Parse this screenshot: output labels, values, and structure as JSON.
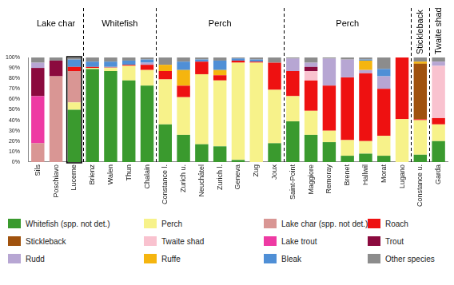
{
  "chart_data": {
    "type": "bar",
    "stacked": true,
    "grid": false,
    "legend": "bottom",
    "categories": [
      "Sils",
      "Poschiavo",
      "Lucerne",
      "Brienz",
      "Walen",
      "Thun",
      "Chalain",
      "Constance l.",
      "Zurich u.",
      "Neuchâtel",
      "Zurich l.",
      "Geneva",
      "Zug",
      "Joux",
      "Saint-Point",
      "Maggiore",
      "Remoray",
      "Brenet",
      "Hallwil",
      "Morat",
      "Lugano",
      "Constance u.",
      "Garda"
    ],
    "groups": [
      {
        "label": "Lake char",
        "from": "Sils",
        "to": "Lucerne"
      },
      {
        "label": "Whitefish",
        "from": "Brienz",
        "to": "Chalain"
      },
      {
        "label": "Perch",
        "from": "Constance l.",
        "to": "Joux"
      },
      {
        "label": "Perch",
        "from": "Saint-Point",
        "to": "Lugano"
      },
      {
        "label": "Stickleback",
        "from": "Constance u.",
        "to": "Constance u."
      },
      {
        "label": "Twaite shad",
        "from": "Garda",
        "to": "Garda"
      }
    ],
    "highlight": "Lucerne",
    "ylim": [
      0,
      100
    ],
    "yticks": [
      {
        "value": 0,
        "label": "0%"
      },
      {
        "value": 10,
        "label": "10%"
      },
      {
        "value": 20,
        "label": "20%"
      },
      {
        "value": 30,
        "label": "30%"
      },
      {
        "value": 40,
        "label": "40%"
      },
      {
        "value": 50,
        "label": "50%"
      },
      {
        "value": 60,
        "label": "60%"
      },
      {
        "value": 70,
        "label": "70%"
      },
      {
        "value": 80,
        "label": "80%"
      },
      {
        "value": 90,
        "label": "90%"
      },
      {
        "value": 100,
        "label": "100%"
      }
    ],
    "series": [
      {
        "name": "Whitefish (spp. not det.)",
        "color": "#3a9a2e",
        "values": [
          0,
          0,
          50,
          89,
          87,
          78,
          73,
          36,
          26,
          17,
          15,
          2,
          0,
          18,
          39,
          26,
          19,
          6,
          8,
          6,
          0,
          7,
          20
        ]
      },
      {
        "name": "Perch",
        "color": "#f7f28a",
        "values": [
          0,
          0,
          7,
          1,
          3,
          14,
          15,
          43,
          36,
          67,
          63,
          93,
          95,
          51,
          24,
          23,
          11,
          15,
          12,
          19,
          41,
          33,
          16
        ]
      },
      {
        "name": "Lake char (spp. not det.)",
        "color": "#d99694",
        "values": [
          18,
          82,
          30,
          0,
          1,
          0,
          0,
          0,
          0,
          0,
          0,
          0,
          0,
          0,
          0,
          0,
          0,
          0,
          0,
          0,
          0,
          0,
          0
        ]
      },
      {
        "name": "Roach",
        "color": "#ee1111",
        "values": [
          0,
          0,
          4,
          1,
          0,
          1,
          5,
          8,
          11,
          12,
          5,
          2,
          1,
          26,
          24,
          29,
          43,
          60,
          65,
          45,
          59,
          1,
          6
        ]
      },
      {
        "name": "Stickleback",
        "color": "#a0520e",
        "values": [
          0,
          0,
          0,
          0,
          0,
          0,
          0,
          0,
          0,
          0,
          0,
          0,
          0,
          0,
          0,
          0,
          0,
          0,
          0,
          0,
          0,
          53,
          0
        ]
      },
      {
        "name": "Twaite shad",
        "color": "#f9c2cf",
        "values": [
          0,
          0,
          0,
          0,
          0,
          0,
          0,
          0,
          0,
          0,
          0,
          0,
          0,
          0,
          0,
          9,
          0,
          0,
          0,
          0,
          0,
          0,
          50
        ]
      },
      {
        "name": "Lake trout",
        "color": "#ee3aa3",
        "values": [
          45,
          0,
          0,
          0,
          0,
          0,
          0,
          0,
          0,
          0,
          0,
          0,
          0,
          0,
          0,
          0,
          0,
          0,
          0,
          0,
          0,
          0,
          0
        ]
      },
      {
        "name": "Trout",
        "color": "#8b0a3e",
        "values": [
          27,
          15,
          0,
          0,
          0,
          0,
          0,
          0,
          0,
          0,
          0,
          0,
          0,
          0,
          0,
          4,
          0,
          0,
          0,
          0,
          0,
          0,
          0
        ]
      },
      {
        "name": "Rudd",
        "color": "#b7a6d3",
        "values": [
          5,
          0,
          0,
          0,
          0,
          0,
          2,
          0,
          0,
          0,
          0,
          0,
          0,
          0,
          12,
          4,
          26,
          17,
          3,
          12,
          0,
          0,
          4
        ]
      },
      {
        "name": "Ruffe",
        "color": "#f5b50f",
        "values": [
          0,
          0,
          0,
          0,
          0,
          0,
          0,
          6,
          15,
          0,
          5,
          0,
          0,
          0,
          0,
          0,
          0,
          0,
          9,
          0,
          0,
          2,
          0
        ]
      },
      {
        "name": "Bleak",
        "color": "#4f8fd6",
        "values": [
          0,
          0,
          7,
          5,
          5,
          4,
          3,
          0,
          8,
          2,
          9,
          2,
          2,
          0,
          0,
          0,
          0,
          0,
          1,
          7,
          0,
          0,
          0
        ]
      },
      {
        "name": "Other species",
        "color": "#8c8c8c",
        "values": [
          5,
          3,
          2,
          4,
          4,
          3,
          2,
          7,
          4,
          2,
          3,
          1,
          2,
          5,
          1,
          5,
          1,
          2,
          2,
          11,
          0,
          4,
          4
        ]
      }
    ]
  }
}
